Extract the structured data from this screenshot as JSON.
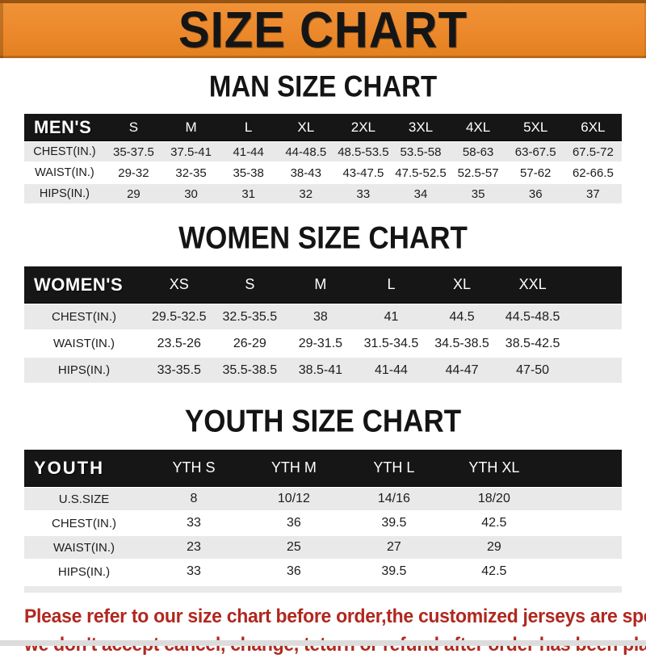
{
  "banner": {
    "title": "SIZE CHART"
  },
  "colors": {
    "orange": "#ED8A2E",
    "bar": "#161616",
    "row-gray": "#E9E9E9",
    "notice-red": "#B0281F"
  },
  "tables": [
    {
      "heading": "MAN SIZE CHART",
      "header": {
        "label": "MEN'S",
        "columns": [
          "S",
          "M",
          "L",
          "XL",
          "2XL",
          "3XL",
          "4XL",
          "5XL",
          "6XL"
        ]
      },
      "trailing_blank": false,
      "rows": [
        {
          "label": "CHEST(IN.)",
          "values": [
            "35-37.5",
            "37.5-41",
            "41-44",
            "44-48.5",
            "48.5-53.5",
            "53.5-58",
            "58-63",
            "63-67.5",
            "67.5-72"
          ]
        },
        {
          "label": "WAIST(IN.)",
          "values": [
            "29-32",
            "32-35",
            "35-38",
            "38-43",
            "43-47.5",
            "47.5-52.5",
            "52.5-57",
            "57-62",
            "62-66.5"
          ]
        },
        {
          "label": "HIPS(IN.)",
          "values": [
            "29",
            "30",
            "31",
            "32",
            "33",
            "34",
            "35",
            "36",
            "37"
          ]
        }
      ]
    },
    {
      "heading": "WOMEN SIZE CHART",
      "header": {
        "label": "WOMEN'S",
        "columns": [
          "XS",
          "S",
          "M",
          "L",
          "XL",
          "XXL"
        ]
      },
      "trailing_blank": true,
      "rows": [
        {
          "label": "CHEST(IN.)",
          "values": [
            "29.5-32.5",
            "32.5-35.5",
            "38",
            "41",
            "44.5",
            "44.5-48.5"
          ]
        },
        {
          "label": "WAIST(IN.)",
          "values": [
            "23.5-26",
            "26-29",
            "29-31.5",
            "31.5-34.5",
            "34.5-38.5",
            "38.5-42.5"
          ]
        },
        {
          "label": "HIPS(IN.)",
          "values": [
            "33-35.5",
            "35.5-38.5",
            "38.5-41",
            "41-44",
            "44-47",
            "47-50"
          ]
        }
      ]
    },
    {
      "heading": "YOUTH SIZE CHART",
      "header": {
        "label": "YOUTH",
        "columns": [
          "YTH S",
          "YTH M",
          "YTH L",
          "YTH XL"
        ]
      },
      "trailing_blank": true,
      "rows": [
        {
          "label": "U.S.SIZE",
          "values": [
            "8",
            "10/12",
            "14/16",
            "18/20"
          ]
        },
        {
          "label": "CHEST(IN.)",
          "values": [
            "33",
            "36",
            "39.5",
            "42.5"
          ]
        },
        {
          "label": "WAIST(IN.)",
          "values": [
            "23",
            "25",
            "27",
            "29"
          ]
        },
        {
          "label": "HIPS(IN.)",
          "values": [
            "33",
            "36",
            "39.5",
            "42.5"
          ]
        }
      ]
    }
  ],
  "notice": {
    "line1": "Please refer to our size chart before order,the customized jerseys are special products,",
    "line2": "we don't accept cancel, change, teturn or refund after order has been placed!"
  }
}
